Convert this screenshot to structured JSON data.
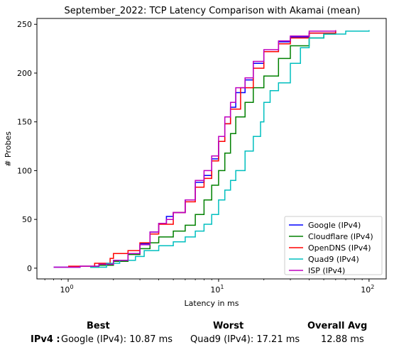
{
  "chart_data": {
    "type": "line",
    "title": "September_2022: TCP Latency Comparison with Akamai (mean)",
    "xlabel": "Latency in ms",
    "ylabel": "# Probes",
    "x_scale": "log",
    "xlim": [
      0.62,
      130
    ],
    "ylim": [
      -11,
      256
    ],
    "x_ticks": [
      {
        "value": 1,
        "base": "10",
        "exp": "0"
      },
      {
        "value": 10,
        "base": "10",
        "exp": "1"
      },
      {
        "value": 100,
        "base": "10",
        "exp": "2"
      }
    ],
    "y_ticks": [
      0,
      50,
      100,
      150,
      200,
      250
    ],
    "grid": false,
    "legend_position": "lower right",
    "series": [
      {
        "name": "Google (IPv4)",
        "color": "#0000ff",
        "points": [
          [
            0.8,
            1
          ],
          [
            1.2,
            2
          ],
          [
            1.6,
            4
          ],
          [
            2.0,
            8
          ],
          [
            2.5,
            15
          ],
          [
            3.0,
            25
          ],
          [
            3.5,
            37
          ],
          [
            4.0,
            46
          ],
          [
            4.5,
            53
          ],
          [
            5.0,
            57
          ],
          [
            6.0,
            70
          ],
          [
            7.0,
            88
          ],
          [
            8.0,
            95
          ],
          [
            9.0,
            112
          ],
          [
            10.0,
            130
          ],
          [
            11.0,
            148
          ],
          [
            12.0,
            165
          ],
          [
            13.0,
            180
          ],
          [
            15.0,
            193
          ],
          [
            17.0,
            210
          ],
          [
            20.0,
            222
          ],
          [
            25.0,
            232
          ],
          [
            30.0,
            237
          ],
          [
            40.0,
            241
          ],
          [
            60.0,
            244
          ]
        ]
      },
      {
        "name": "Cloudflare (IPv4)",
        "color": "#008000",
        "points": [
          [
            1.4,
            1
          ],
          [
            1.6,
            3
          ],
          [
            2.0,
            7
          ],
          [
            2.5,
            14
          ],
          [
            3.0,
            20
          ],
          [
            3.5,
            26
          ],
          [
            4.0,
            32
          ],
          [
            5.0,
            38
          ],
          [
            6.0,
            44
          ],
          [
            7.0,
            55
          ],
          [
            8.0,
            70
          ],
          [
            9.0,
            85
          ],
          [
            10.0,
            100
          ],
          [
            11.0,
            118
          ],
          [
            12.0,
            138
          ],
          [
            13.0,
            155
          ],
          [
            15.0,
            170
          ],
          [
            17.0,
            185
          ],
          [
            20.0,
            197
          ],
          [
            25.0,
            215
          ],
          [
            30.0,
            228
          ],
          [
            40.0,
            236
          ],
          [
            50.0,
            240
          ],
          [
            60.0,
            243
          ]
        ]
      },
      {
        "name": "OpenDNS (IPv4)",
        "color": "#ff0000",
        "points": [
          [
            1.0,
            2
          ],
          [
            1.5,
            5
          ],
          [
            1.9,
            10
          ],
          [
            2.0,
            15
          ],
          [
            2.5,
            18
          ],
          [
            3.0,
            26
          ],
          [
            3.5,
            35
          ],
          [
            4.0,
            45
          ],
          [
            5.0,
            57
          ],
          [
            6.0,
            68
          ],
          [
            7.0,
            83
          ],
          [
            8.0,
            92
          ],
          [
            9.0,
            110
          ],
          [
            10.0,
            130
          ],
          [
            11.0,
            148
          ],
          [
            12.0,
            163
          ],
          [
            14.0,
            185
          ],
          [
            17.0,
            205
          ],
          [
            20.0,
            222
          ],
          [
            25.0,
            230
          ],
          [
            30.0,
            236
          ],
          [
            40.0,
            241
          ],
          [
            60.0,
            244
          ]
        ]
      },
      {
        "name": "Quad9 (IPv4)",
        "color": "#00bfbf",
        "points": [
          [
            1.4,
            1
          ],
          [
            1.8,
            5
          ],
          [
            2.2,
            8
          ],
          [
            2.8,
            12
          ],
          [
            3.2,
            18
          ],
          [
            4.0,
            23
          ],
          [
            5.0,
            27
          ],
          [
            6.0,
            32
          ],
          [
            7.0,
            38
          ],
          [
            8.0,
            45
          ],
          [
            9.0,
            55
          ],
          [
            10.0,
            70
          ],
          [
            11.0,
            80
          ],
          [
            12.0,
            90
          ],
          [
            13.0,
            100
          ],
          [
            15.0,
            120
          ],
          [
            17.0,
            135
          ],
          [
            19.0,
            150
          ],
          [
            20.0,
            170
          ],
          [
            22.0,
            182
          ],
          [
            25.0,
            190
          ],
          [
            30.0,
            210
          ],
          [
            35.0,
            226
          ],
          [
            40.0,
            236
          ],
          [
            50.0,
            240
          ],
          [
            70.0,
            243
          ],
          [
            100.0,
            244
          ]
        ]
      },
      {
        "name": "ISP (IPv4)",
        "color": "#bf00bf",
        "points": [
          [
            0.8,
            1
          ],
          [
            1.2,
            2
          ],
          [
            1.6,
            4
          ],
          [
            2.0,
            8
          ],
          [
            2.5,
            15
          ],
          [
            3.0,
            24
          ],
          [
            3.5,
            37
          ],
          [
            4.0,
            46
          ],
          [
            4.5,
            50
          ],
          [
            5.0,
            57
          ],
          [
            6.0,
            70
          ],
          [
            7.0,
            90
          ],
          [
            8.0,
            100
          ],
          [
            9.0,
            115
          ],
          [
            10.0,
            135
          ],
          [
            11.0,
            155
          ],
          [
            12.0,
            170
          ],
          [
            13.0,
            185
          ],
          [
            15.0,
            195
          ],
          [
            17.0,
            212
          ],
          [
            20.0,
            224
          ],
          [
            25.0,
            233
          ],
          [
            30.0,
            238
          ],
          [
            40.0,
            243
          ],
          [
            60.0,
            244
          ]
        ]
      }
    ]
  },
  "summary": {
    "best_header": "Best",
    "worst_header": "Worst",
    "avg_header": "Overall Avg",
    "row_label": "IPv4 :",
    "best_value": "Google (IPv4): 10.87 ms",
    "worst_value": "Quad9 (IPv4): 17.21 ms",
    "avg_value": "12.88 ms"
  }
}
